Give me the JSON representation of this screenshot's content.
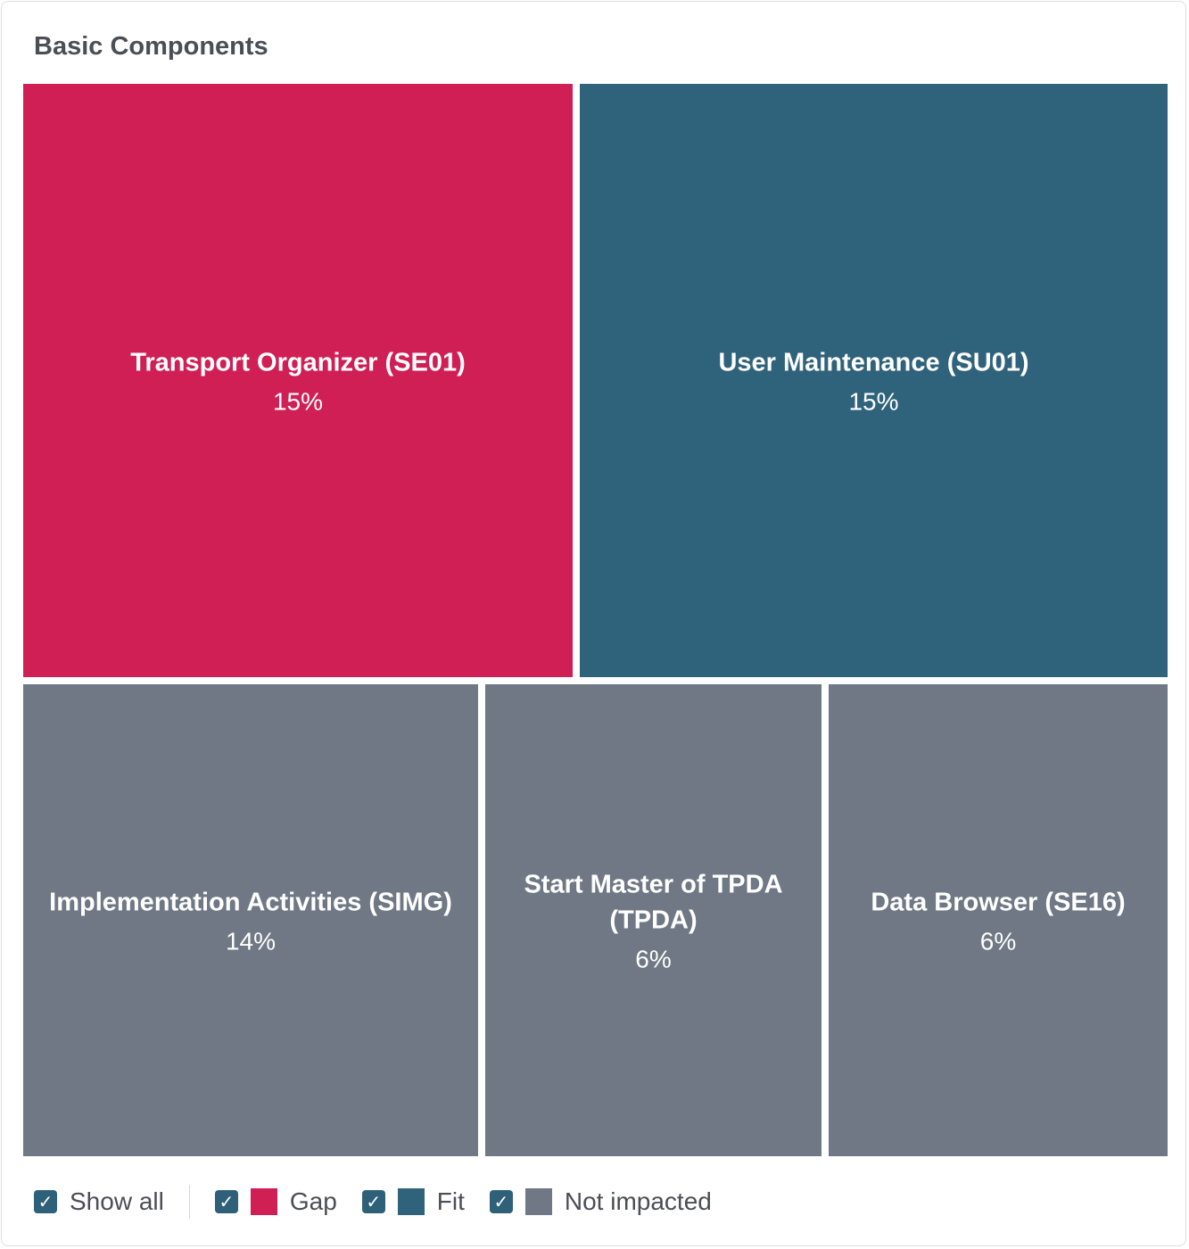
{
  "card": {
    "title": "Basic Components"
  },
  "chart_data": {
    "type": "treemap",
    "title": "Basic Components",
    "items": [
      {
        "label": "Transport Organizer (SE01)",
        "label_lines": [
          "Transport Organizer (SE01)"
        ],
        "value": "15%",
        "percent": 15,
        "category": "gap"
      },
      {
        "label": "User Maintenance (SU01)",
        "label_lines": [
          "User Maintenance (SU01)"
        ],
        "value": "15%",
        "percent": 15,
        "category": "fit"
      },
      {
        "label": "Implementation Activities (SIMG)",
        "label_lines": [
          "Implementation Activities (SIMG)"
        ],
        "value": "14%",
        "percent": 14,
        "category": "not_impacted"
      },
      {
        "label": "Start Master of TPDA (TPDA)",
        "label_lines": [
          "Start Master of TPDA",
          "(TPDA)"
        ],
        "value": "6%",
        "percent": 6,
        "category": "not_impacted"
      },
      {
        "label": "Data Browser (SE16)",
        "label_lines": [
          "Data Browser (SE16)"
        ],
        "value": "6%",
        "percent": 6,
        "category": "not_impacted"
      }
    ],
    "colors": {
      "gap": "#d01f55",
      "fit": "#2f637b",
      "not_impacted": "#6f7884"
    }
  },
  "legend": {
    "show_all_label": "Show all",
    "check_glyph": "✓",
    "items": [
      {
        "key": "gap",
        "label": "Gap",
        "checked": true
      },
      {
        "key": "fit",
        "label": "Fit",
        "checked": true
      },
      {
        "key": "not_impacted",
        "label": "Not impacted",
        "checked": true
      }
    ]
  }
}
